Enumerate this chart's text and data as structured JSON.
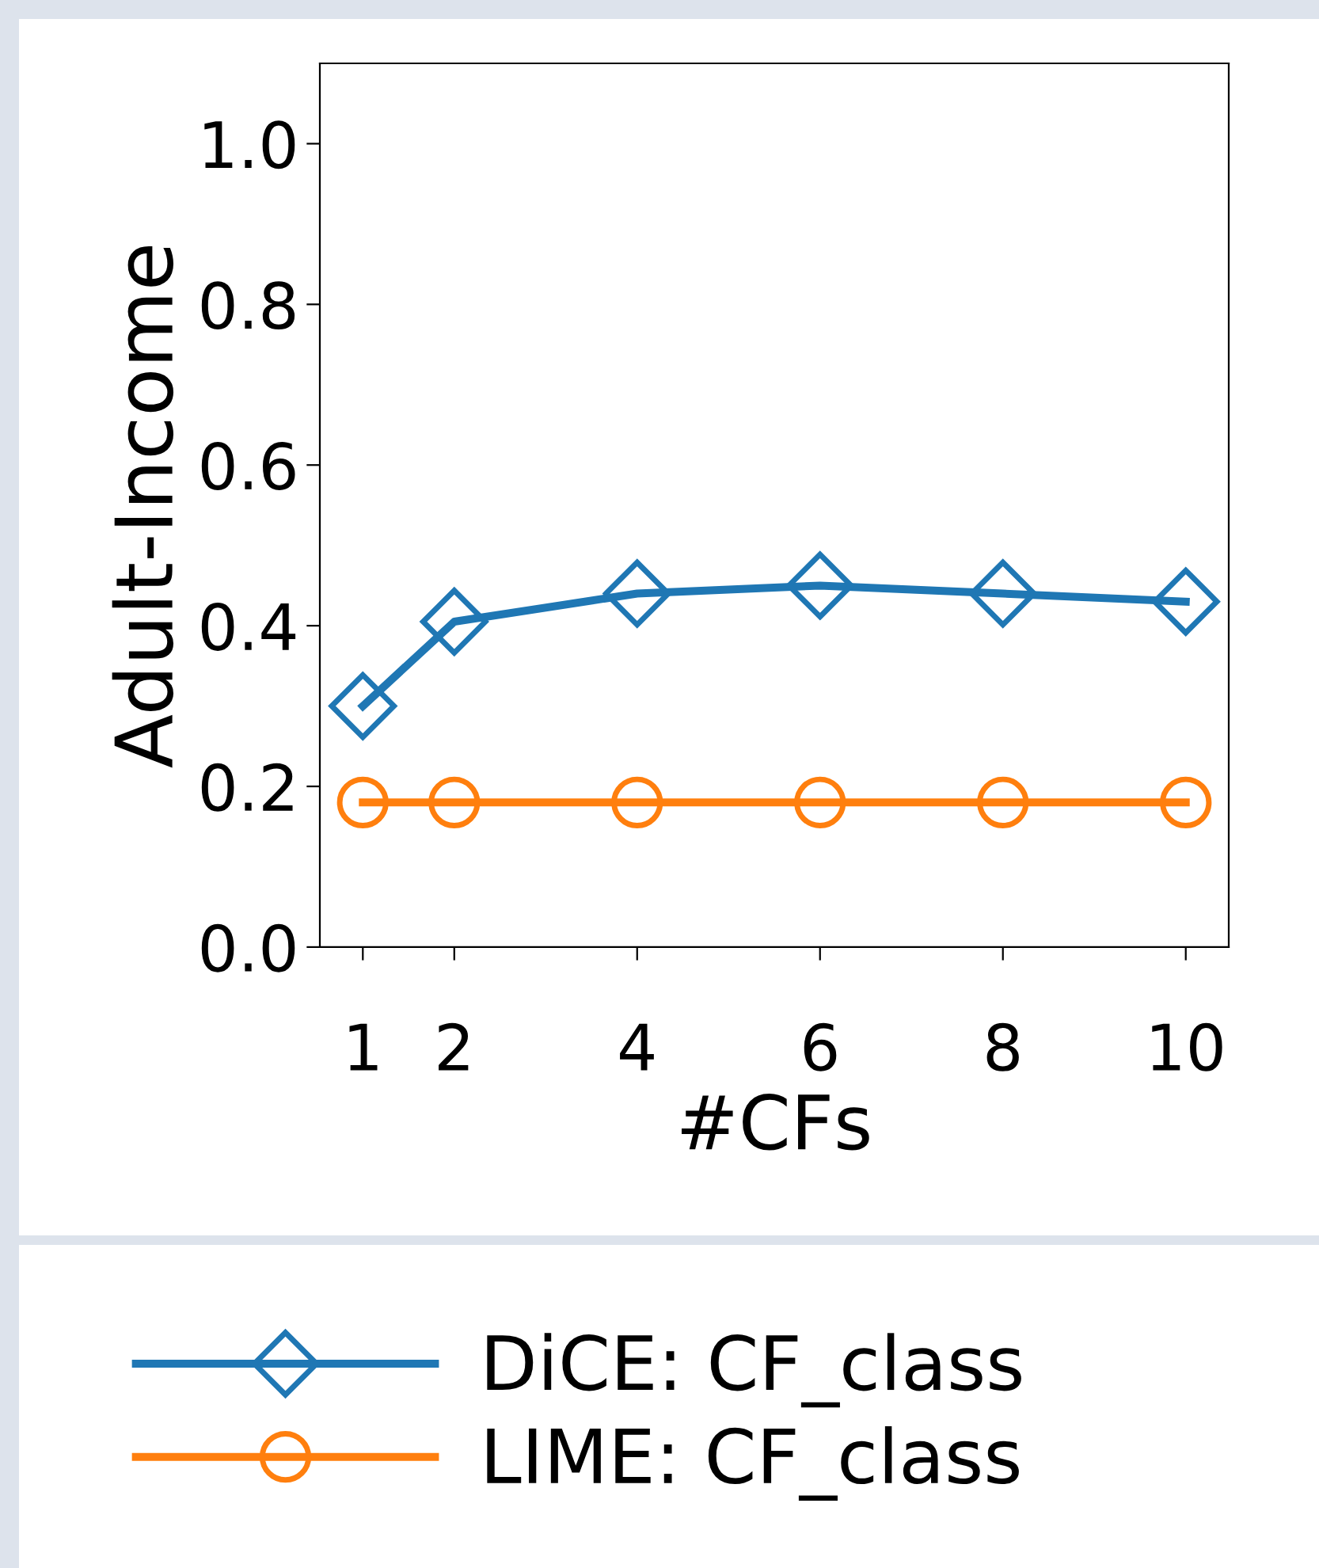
{
  "chart_data": {
    "type": "line",
    "xlabel": "#CFs",
    "ylabel": "Adult-Income",
    "x": [
      1,
      2,
      4,
      6,
      8,
      10
    ],
    "series": [
      {
        "name": "DiCE: CF_class",
        "color": "#1f77b4",
        "marker": "diamond",
        "values": [
          0.3,
          0.405,
          0.44,
          0.45,
          0.44,
          0.43
        ]
      },
      {
        "name": "LIME: CF_class",
        "color": "#ff7f0e",
        "marker": "circle",
        "values": [
          0.18,
          0.18,
          0.18,
          0.18,
          0.18,
          0.18
        ]
      }
    ],
    "xlim": [
      0.53,
      10.47
    ],
    "xticks": [
      1,
      2,
      4,
      6,
      8,
      10
    ],
    "ylim": [
      0,
      1.1
    ],
    "yticks": [
      {
        "value": 0,
        "label": "0.0"
      },
      0.2,
      0.4,
      0.6,
      0.8,
      {
        "value": 1,
        "label": "1.0"
      }
    ],
    "grid": false,
    "legend": "bottom",
    "line_style": "solid"
  }
}
